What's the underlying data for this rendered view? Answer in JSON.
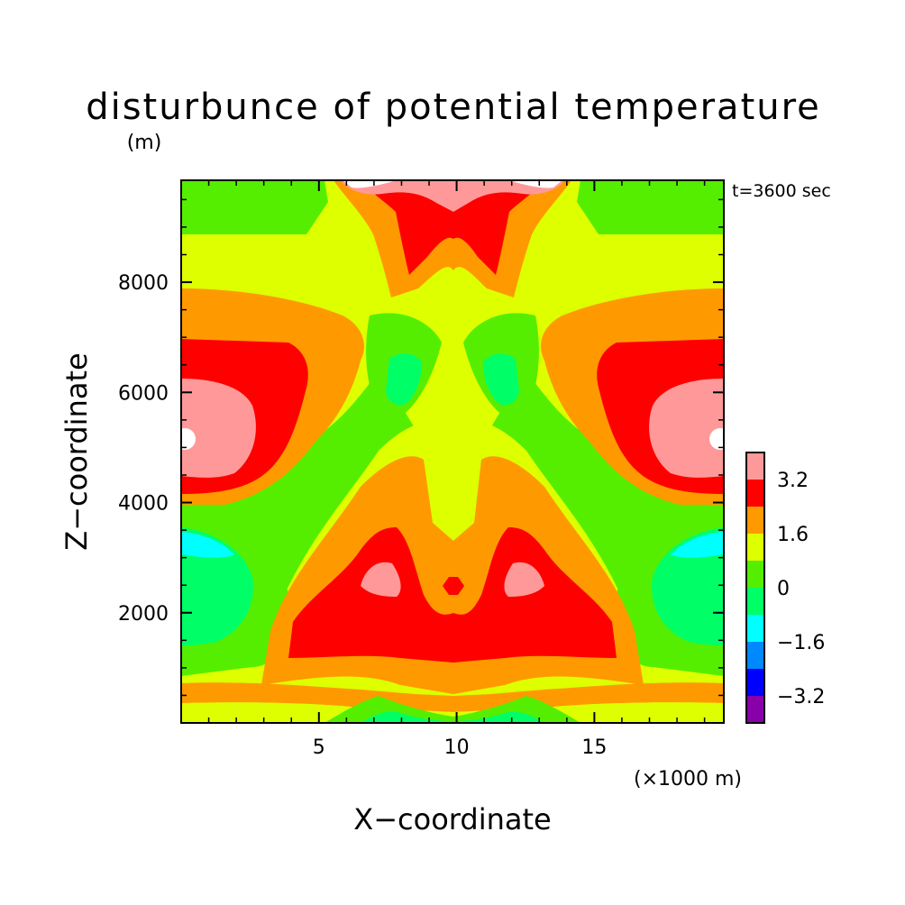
{
  "chart_data": {
    "type": "heatmap",
    "title": "disturbunce of potential temperature",
    "ylabel": "Z−coordinate",
    "ylabel_unit": "(m)",
    "xlabel": "X−coordinate",
    "xlabel_unit": "(×1000 m)",
    "time_label": "t=3600 sec",
    "xlim": [
      0,
      19.7
    ],
    "ylim": [
      0,
      9850
    ],
    "x_ticks": [
      5,
      10,
      15
    ],
    "x_tick_labels": [
      "5",
      "10",
      "15"
    ],
    "y_ticks": [
      2000,
      4000,
      6000,
      8000
    ],
    "y_tick_labels": [
      "2000",
      "4000",
      "6000",
      "8000"
    ],
    "colorbar": {
      "levels": [
        -4.0,
        -3.2,
        -2.4,
        -1.6,
        -0.8,
        0.0,
        0.8,
        1.6,
        2.4,
        3.2,
        4.0
      ],
      "colors": [
        "#8800aa",
        "#0000ff",
        "#0088ff",
        "#00ffff",
        "#00ff66",
        "#55ee00",
        "#ddff00",
        "#ff9900",
        "#ff0000",
        "#ff9999"
      ],
      "tick_labels": [
        "−3.2",
        "−1.6",
        "0",
        "1.6",
        "3.2"
      ],
      "tick_values": [
        -3.2,
        -1.6,
        0.0,
        1.6,
        3.2
      ]
    },
    "field_regions": [
      {
        "level": "0 to 0.8",
        "color": "#55ee00",
        "description": "background"
      },
      {
        "level": "1.6 to 2.4",
        "color": "#ff9900"
      },
      {
        "level": "2.4 to 3.2",
        "color": "#ff0000"
      },
      {
        "level": "3.2 to 4.0",
        "color": "#ff9999"
      },
      {
        "level": "-0.8 to 0",
        "color": "#00ff66"
      },
      {
        "level": "-1.6 to -0.8",
        "color": "#00ffff"
      }
    ],
    "grid": false,
    "legend": "right colorbar"
  }
}
